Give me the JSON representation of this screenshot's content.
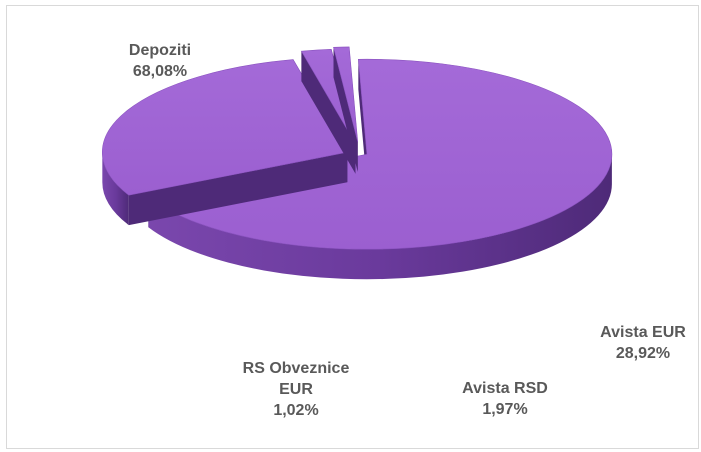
{
  "chart_data": {
    "type": "pie",
    "variant": "3d-exploded",
    "title": "",
    "slices": [
      {
        "label": "Depoziti",
        "value": 68.08,
        "value_label": "68,08%"
      },
      {
        "label": "Avista EUR",
        "value": 28.92,
        "value_label": "28,92%"
      },
      {
        "label": "Avista RSD",
        "value": 1.97,
        "value_label": "1,97%"
      },
      {
        "label": "RS Obveznice EUR",
        "value": 1.02,
        "value_label": "1,02%"
      }
    ],
    "label_lines": {
      "depoziti": "Depoziti",
      "avista_eur": "Avista EUR",
      "avista_rsd": "Avista RSD",
      "rs_line1": "RS Obveznice",
      "rs_line2": "EUR"
    },
    "colors": {
      "slice_top": "#9b5fd0",
      "slice_side": "#6a3a9c",
      "slice_side_dark": "#4e2a78",
      "label": "#595959",
      "border": "#d9d9d9"
    },
    "legend": "none"
  }
}
